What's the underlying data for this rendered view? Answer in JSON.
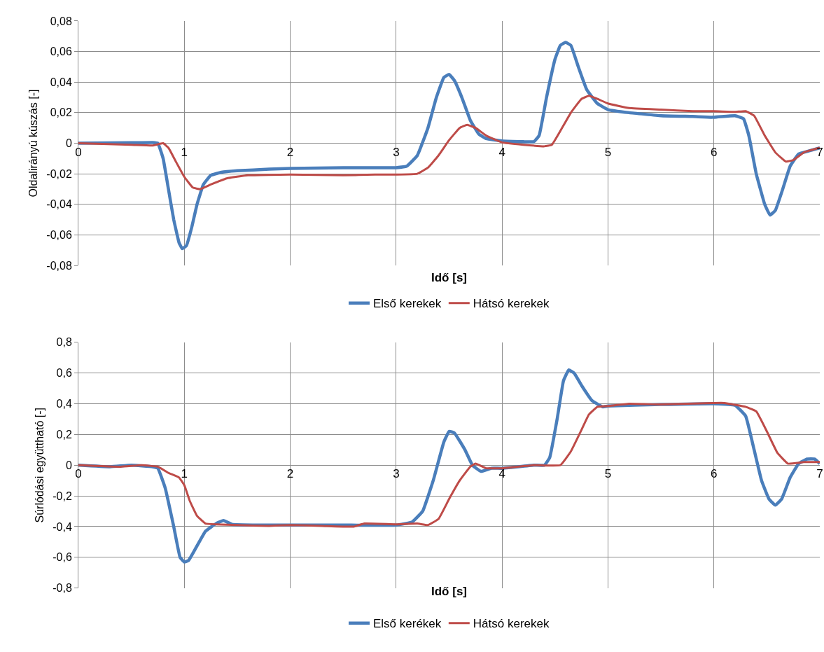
{
  "chart_data": [
    {
      "type": "line",
      "xlabel": "Idő [s]",
      "ylabel": "Oldalirányú kúszás [-]",
      "xlim": [
        0,
        7
      ],
      "xticks": [
        0,
        1,
        2,
        3,
        4,
        5,
        6,
        7
      ],
      "ylim": [
        -0.08,
        0.08
      ],
      "yticks": [
        {
          "value": -0.08,
          "label": "-0,08"
        },
        {
          "value": -0.06,
          "label": "-0,06"
        },
        {
          "value": -0.04,
          "label": "-0,04"
        },
        {
          "value": -0.02,
          "label": "-0,02"
        },
        {
          "value": 0,
          "label": "0"
        },
        {
          "value": 0.02,
          "label": "0,02"
        },
        {
          "value": 0.04,
          "label": "0,04"
        },
        {
          "value": 0.06,
          "label": "0,06"
        },
        {
          "value": 0.08,
          "label": "0,08"
        }
      ],
      "grid": true,
      "legend": "bottom",
      "series": [
        {
          "name": "Első kerekek",
          "color": "#4a7ebb",
          "x": [
            0,
            0.5,
            0.7,
            0.75,
            0.8,
            0.85,
            0.9,
            0.95,
            0.98,
            1.02,
            1.07,
            1.12,
            1.18,
            1.25,
            1.35,
            1.5,
            1.8,
            2.0,
            2.5,
            2.8,
            3.0,
            3.1,
            3.2,
            3.3,
            3.38,
            3.45,
            3.5,
            3.55,
            3.62,
            3.7,
            3.78,
            3.85,
            4.0,
            4.2,
            4.3,
            4.35,
            4.42,
            4.5,
            4.55,
            4.6,
            4.65,
            4.72,
            4.8,
            4.9,
            5.0,
            5.2,
            5.5,
            5.8,
            6.0,
            6.2,
            6.28,
            6.33,
            6.4,
            6.48,
            6.53,
            6.58,
            6.65,
            6.72,
            6.8,
            6.9,
            7.0
          ],
          "values": [
            0,
            0.0003,
            0.0005,
            0,
            -0.01,
            -0.03,
            -0.05,
            -0.065,
            -0.069,
            -0.067,
            -0.055,
            -0.04,
            -0.027,
            -0.021,
            -0.019,
            -0.018,
            -0.017,
            -0.0165,
            -0.016,
            -0.016,
            -0.016,
            -0.015,
            -0.008,
            0.01,
            0.03,
            0.043,
            0.045,
            0.041,
            0.03,
            0.015,
            0.006,
            0.003,
            0.0015,
            0.001,
            0.001,
            0.005,
            0.03,
            0.055,
            0.064,
            0.066,
            0.064,
            0.05,
            0.035,
            0.026,
            0.022,
            0.02,
            0.018,
            0.0175,
            0.017,
            0.018,
            0.016,
            0.005,
            -0.02,
            -0.04,
            -0.047,
            -0.044,
            -0.03,
            -0.015,
            -0.007,
            -0.005,
            -0.003
          ]
        },
        {
          "name": "Hátsó kerekek",
          "color": "#be4b48",
          "x": [
            0,
            0.5,
            0.7,
            0.8,
            0.85,
            0.92,
            1.0,
            1.08,
            1.15,
            1.25,
            1.4,
            1.6,
            2.0,
            2.5,
            2.8,
            3.0,
            3.2,
            3.3,
            3.4,
            3.5,
            3.6,
            3.67,
            3.75,
            3.85,
            4.0,
            4.2,
            4.4,
            4.47,
            4.55,
            4.65,
            4.75,
            4.82,
            4.9,
            5.0,
            5.2,
            5.5,
            5.8,
            6.0,
            6.2,
            6.3,
            6.38,
            6.48,
            6.58,
            6.68,
            6.75,
            6.85,
            7.0
          ],
          "values": [
            0,
            -0.001,
            -0.0015,
            0,
            -0.003,
            -0.012,
            -0.022,
            -0.029,
            -0.03,
            -0.027,
            -0.023,
            -0.021,
            -0.0205,
            -0.021,
            -0.0205,
            -0.0205,
            -0.02,
            -0.016,
            -0.008,
            0.002,
            0.01,
            0.012,
            0.01,
            0.005,
            0.0005,
            -0.001,
            -0.002,
            -0.001,
            0.008,
            0.02,
            0.029,
            0.031,
            0.029,
            0.026,
            0.023,
            0.022,
            0.021,
            0.021,
            0.0205,
            0.021,
            0.018,
            0.005,
            -0.006,
            -0.012,
            -0.011,
            -0.006,
            -0.003
          ]
        }
      ]
    },
    {
      "type": "line",
      "xlabel": "Idő [s]",
      "ylabel": "Súrlódási együttható [-]",
      "xlim": [
        0,
        7
      ],
      "xticks": [
        0,
        1,
        2,
        3,
        4,
        5,
        6,
        7
      ],
      "ylim": [
        -0.8,
        0.8
      ],
      "yticks": [
        {
          "value": -0.8,
          "label": "-0,8"
        },
        {
          "value": -0.6,
          "label": "-0,6"
        },
        {
          "value": -0.4,
          "label": "-0,4"
        },
        {
          "value": -0.2,
          "label": "-0,2"
        },
        {
          "value": 0,
          "label": "0"
        },
        {
          "value": 0.2,
          "label": "0,2"
        },
        {
          "value": 0.4,
          "label": "0,4"
        },
        {
          "value": 0.6,
          "label": "0,6"
        },
        {
          "value": 0.8,
          "label": "0,8"
        }
      ],
      "grid": true,
      "legend": "bottom",
      "series": [
        {
          "name": "Első kerékek",
          "color": "#4a7ebb",
          "x": [
            0,
            0.3,
            0.5,
            0.7,
            0.75,
            0.82,
            0.9,
            0.96,
            1.0,
            1.04,
            1.1,
            1.2,
            1.3,
            1.37,
            1.45,
            1.7,
            2.0,
            2.5,
            3.0,
            3.15,
            3.25,
            3.35,
            3.45,
            3.5,
            3.55,
            3.65,
            3.72,
            3.8,
            3.9,
            4.0,
            4.3,
            4.4,
            4.45,
            4.52,
            4.58,
            4.63,
            4.68,
            4.75,
            4.85,
            4.95,
            5.0,
            5.5,
            6.0,
            6.2,
            6.3,
            6.38,
            6.45,
            6.52,
            6.58,
            6.64,
            6.72,
            6.8,
            6.88,
            6.95,
            7.0
          ],
          "values": [
            0,
            -0.01,
            0,
            -0.01,
            -0.02,
            -0.15,
            -0.4,
            -0.6,
            -0.63,
            -0.62,
            -0.55,
            -0.43,
            -0.38,
            -0.36,
            -0.385,
            -0.39,
            -0.39,
            -0.39,
            -0.39,
            -0.37,
            -0.3,
            -0.1,
            0.15,
            0.22,
            0.21,
            0.1,
            0.0,
            -0.04,
            -0.02,
            -0.02,
            0.0,
            0.0,
            0.05,
            0.3,
            0.55,
            0.62,
            0.6,
            0.52,
            0.42,
            0.38,
            0.385,
            0.395,
            0.4,
            0.39,
            0.32,
            0.1,
            -0.1,
            -0.22,
            -0.26,
            -0.22,
            -0.08,
            0.01,
            0.04,
            0.04,
            0.01
          ]
        },
        {
          "name": "Hátsó kerekek",
          "color": "#be4b48",
          "x": [
            0,
            0.4,
            0.6,
            0.75,
            0.85,
            0.95,
            1.0,
            1.05,
            1.12,
            1.2,
            1.3,
            1.5,
            1.8,
            2.0,
            2.3,
            2.6,
            2.7,
            3.0,
            3.2,
            3.3,
            3.4,
            3.5,
            3.6,
            3.7,
            3.75,
            3.85,
            4.0,
            4.3,
            4.55,
            4.65,
            4.75,
            4.82,
            4.9,
            5.0,
            5.2,
            5.5,
            6.0,
            6.1,
            6.3,
            6.4,
            6.5,
            6.6,
            6.7,
            6.85,
            7.0
          ],
          "values": [
            0,
            -0.01,
            0,
            -0.01,
            -0.05,
            -0.08,
            -0.13,
            -0.23,
            -0.33,
            -0.38,
            -0.385,
            -0.39,
            -0.395,
            -0.39,
            -0.395,
            -0.4,
            -0.38,
            -0.385,
            -0.38,
            -0.39,
            -0.35,
            -0.22,
            -0.1,
            -0.01,
            0.01,
            -0.02,
            -0.02,
            0.0,
            0.0,
            0.09,
            0.23,
            0.33,
            0.38,
            0.385,
            0.4,
            0.395,
            0.405,
            0.405,
            0.38,
            0.35,
            0.22,
            0.08,
            0.01,
            0.02,
            0.02
          ]
        }
      ]
    }
  ]
}
